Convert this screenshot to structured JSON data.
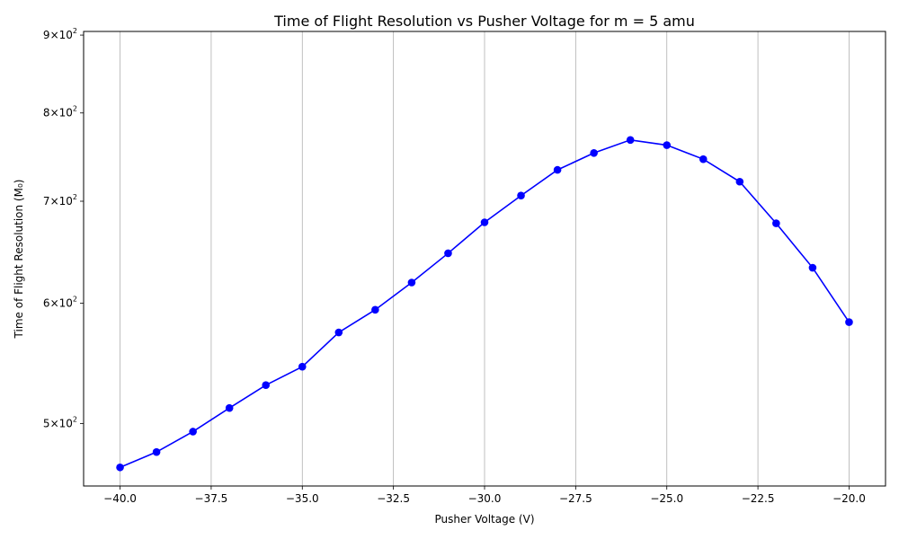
{
  "chart_data": {
    "type": "line",
    "title": "Time of Flight Resolution vs Pusher Voltage for m = 5 amu",
    "xlabel": "Pusher Voltage (V)",
    "ylabel": "Time of Flight Resolution (M₀)",
    "xlim": [
      -41,
      -19
    ],
    "ylim": [
      455,
      905
    ],
    "y_scale": "log",
    "grid": "x-only",
    "legend": "none",
    "line_color": "#0000ff",
    "marker_color": "#0000ff",
    "x_ticks": [
      {
        "value": -40.0,
        "label": "−40.0"
      },
      {
        "value": -37.5,
        "label": "−37.5"
      },
      {
        "value": -35.0,
        "label": "−35.0"
      },
      {
        "value": -32.5,
        "label": "−32.5"
      },
      {
        "value": -30.0,
        "label": "−30.0"
      },
      {
        "value": -27.5,
        "label": "−27.5"
      },
      {
        "value": -25.0,
        "label": "−25.0"
      },
      {
        "value": -22.5,
        "label": "−22.5"
      },
      {
        "value": -20.0,
        "label": "−20.0"
      }
    ],
    "y_ticks": [
      {
        "value": 500,
        "mantissa": "5",
        "base": "10",
        "exp": "2"
      },
      {
        "value": 600,
        "mantissa": "6",
        "base": "10",
        "exp": "2"
      },
      {
        "value": 700,
        "mantissa": "7",
        "base": "10",
        "exp": "2"
      },
      {
        "value": 800,
        "mantissa": "8",
        "base": "10",
        "exp": "2"
      },
      {
        "value": 900,
        "mantissa": "9",
        "base": "10",
        "exp": "2"
      }
    ],
    "series": [
      {
        "x": [
          -40,
          -39,
          -38,
          -37,
          -36,
          -35,
          -34,
          -33,
          -32,
          -31,
          -30,
          -29,
          -28,
          -27,
          -26,
          -25,
          -24,
          -23,
          -22,
          -21,
          -20
        ],
        "y": [
          468,
          479,
          494,
          512,
          530,
          545,
          574,
          594,
          619,
          647,
          678,
          706,
          734,
          753,
          768,
          762,
          746,
          721,
          677,
          633,
          583
        ]
      }
    ]
  }
}
